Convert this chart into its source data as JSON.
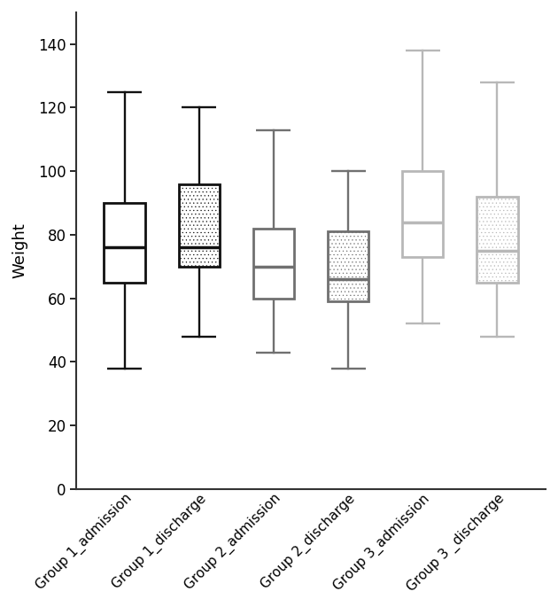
{
  "groups": [
    {
      "label": "Group 1_admission",
      "whisker_low": 38,
      "q1": 65,
      "median": 76,
      "q3": 90,
      "whisker_high": 125,
      "color": "#111111",
      "hatch": false,
      "lw": 2.0
    },
    {
      "label": "Group 1_discharge",
      "whisker_low": 48,
      "q1": 70,
      "median": 76,
      "q3": 96,
      "whisker_high": 120,
      "color": "#111111",
      "hatch": true,
      "lw": 2.0
    },
    {
      "label": "Group 2_admission",
      "whisker_low": 43,
      "q1": 60,
      "median": 70,
      "q3": 82,
      "whisker_high": 113,
      "color": "#707070",
      "hatch": false,
      "lw": 2.0
    },
    {
      "label": "Group 2_discharge",
      "whisker_low": 38,
      "q1": 59,
      "median": 66,
      "q3": 81,
      "whisker_high": 100,
      "color": "#707070",
      "hatch": true,
      "lw": 2.0
    },
    {
      "label": "Group 3_admission",
      "whisker_low": 52,
      "q1": 73,
      "median": 84,
      "q3": 100,
      "whisker_high": 138,
      "color": "#b8b8b8",
      "hatch": false,
      "lw": 2.0
    },
    {
      "label": "Group 3 _discharge",
      "whisker_low": 48,
      "q1": 65,
      "median": 75,
      "q3": 92,
      "whisker_high": 128,
      "color": "#b8b8b8",
      "hatch": true,
      "lw": 2.0
    }
  ],
  "ylabel": "Weight",
  "ylim": [
    0,
    150
  ],
  "yticks": [
    0,
    20,
    40,
    60,
    80,
    100,
    120,
    140
  ],
  "background_color": "#ffffff",
  "box_width": 0.55,
  "figsize": [
    6.3,
    6.85
  ],
  "dpi": 100
}
